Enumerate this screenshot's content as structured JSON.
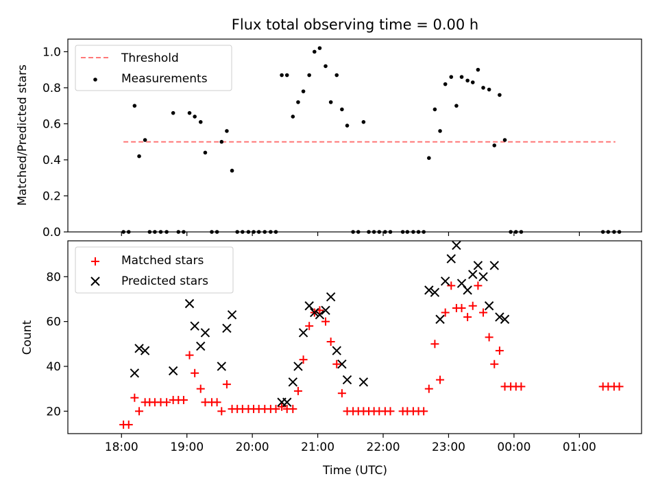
{
  "figure": {
    "title": "Flux total observing time = 0.00 h"
  },
  "chart_data": [
    {
      "type": "scatter",
      "panel": "top",
      "title": "Flux total observing time = 0.00 h",
      "xlabel": "",
      "ylabel": "Matched/Predicted stars",
      "x_ticks": [
        "18:00",
        "19:00",
        "20:00",
        "21:00",
        "22:00",
        "23:00",
        "00:00",
        "01:00"
      ],
      "x_tick_values": [
        18,
        19,
        20,
        21,
        22,
        23,
        24,
        25
      ],
      "x_tick_labels_shown": false,
      "xlim": [
        17.18,
        25.95
      ],
      "ylim": [
        0,
        1.07
      ],
      "y_ticks": [
        0.0,
        0.2,
        0.4,
        0.6,
        0.8,
        1.0
      ],
      "y_tick_labels": [
        "0.0",
        "0.2",
        "0.4",
        "0.6",
        "0.8",
        "1.0"
      ],
      "grid": false,
      "legend": {
        "placement": "top-left",
        "entries": [
          "Threshold",
          "Measurements"
        ]
      },
      "colors": {
        "threshold": "#ff7777",
        "measurements": "#000000"
      },
      "threshold": {
        "name": "Threshold",
        "value": 0.5,
        "x_range": [
          18.03,
          25.55
        ]
      },
      "series": [
        {
          "name": "Measurements",
          "marker": "dot",
          "points": [
            [
              18.03,
              0
            ],
            [
              18.11,
              0
            ],
            [
              18.2,
              0.7
            ],
            [
              18.27,
              0.42
            ],
            [
              18.36,
              0.51
            ],
            [
              18.43,
              0
            ],
            [
              18.51,
              0
            ],
            [
              18.6,
              0
            ],
            [
              18.69,
              0
            ],
            [
              18.79,
              0.66
            ],
            [
              18.87,
              0
            ],
            [
              18.95,
              0
            ],
            [
              19.04,
              0.66
            ],
            [
              19.12,
              0.64
            ],
            [
              19.21,
              0.61
            ],
            [
              19.28,
              0.44
            ],
            [
              19.38,
              0
            ],
            [
              19.46,
              0
            ],
            [
              19.53,
              0.5
            ],
            [
              19.61,
              0.56
            ],
            [
              19.69,
              0.34
            ],
            [
              19.77,
              0
            ],
            [
              19.85,
              0
            ],
            [
              19.94,
              0
            ],
            [
              20.02,
              0
            ],
            [
              20.1,
              0
            ],
            [
              20.19,
              0
            ],
            [
              20.28,
              0
            ],
            [
              20.36,
              0
            ],
            [
              20.45,
              0.87
            ],
            [
              20.53,
              0.87
            ],
            [
              20.62,
              0.64
            ],
            [
              20.7,
              0.72
            ],
            [
              20.78,
              0.78
            ],
            [
              20.87,
              0.87
            ],
            [
              20.95,
              1.0
            ],
            [
              21.03,
              1.02
            ],
            [
              21.12,
              0.92
            ],
            [
              21.2,
              0.72
            ],
            [
              21.29,
              0.87
            ],
            [
              21.37,
              0.68
            ],
            [
              21.45,
              0.59
            ],
            [
              21.54,
              0
            ],
            [
              21.62,
              0
            ],
            [
              21.7,
              0.61
            ],
            [
              21.78,
              0
            ],
            [
              21.86,
              0
            ],
            [
              21.94,
              0
            ],
            [
              22.03,
              0
            ],
            [
              22.11,
              0
            ],
            [
              22.3,
              0
            ],
            [
              22.37,
              0
            ],
            [
              22.46,
              0
            ],
            [
              22.54,
              0
            ],
            [
              22.62,
              0
            ],
            [
              22.7,
              0.41
            ],
            [
              22.79,
              0.68
            ],
            [
              22.87,
              0.56
            ],
            [
              22.95,
              0.82
            ],
            [
              23.04,
              0.86
            ],
            [
              23.12,
              0.7
            ],
            [
              23.2,
              0.86
            ],
            [
              23.29,
              0.84
            ],
            [
              23.37,
              0.83
            ],
            [
              23.45,
              0.9
            ],
            [
              23.53,
              0.8
            ],
            [
              23.62,
              0.79
            ],
            [
              23.7,
              0.48
            ],
            [
              23.78,
              0.76
            ],
            [
              23.86,
              0.51
            ],
            [
              23.95,
              0
            ],
            [
              24.03,
              0
            ],
            [
              24.11,
              0
            ],
            [
              25.36,
              0
            ],
            [
              25.44,
              0
            ],
            [
              25.53,
              0
            ],
            [
              25.61,
              0
            ]
          ]
        }
      ]
    },
    {
      "type": "scatter",
      "panel": "bottom",
      "xlabel": "Time (UTC)",
      "ylabel": "Count",
      "x_ticks": [
        "18:00",
        "19:00",
        "20:00",
        "21:00",
        "22:00",
        "23:00",
        "00:00",
        "01:00"
      ],
      "x_tick_values": [
        18,
        19,
        20,
        21,
        22,
        23,
        24,
        25
      ],
      "xlim": [
        17.18,
        25.95
      ],
      "ylim": [
        10,
        96
      ],
      "y_ticks": [
        20,
        40,
        60,
        80
      ],
      "y_tick_labels": [
        "20",
        "40",
        "60",
        "80"
      ],
      "grid": false,
      "legend": {
        "placement": "top-left",
        "entries": [
          "Matched stars",
          "Predicted stars"
        ]
      },
      "colors": {
        "matched": "#ff0000",
        "predicted": "#000000"
      },
      "series": [
        {
          "name": "Matched stars",
          "marker": "plus",
          "points": [
            [
              18.03,
              14
            ],
            [
              18.11,
              14
            ],
            [
              18.2,
              26
            ],
            [
              18.27,
              20
            ],
            [
              18.36,
              24
            ],
            [
              18.43,
              24
            ],
            [
              18.51,
              24
            ],
            [
              18.6,
              24
            ],
            [
              18.69,
              24
            ],
            [
              18.79,
              25
            ],
            [
              18.87,
              25
            ],
            [
              18.95,
              25
            ],
            [
              19.04,
              45
            ],
            [
              19.12,
              37
            ],
            [
              19.21,
              30
            ],
            [
              19.28,
              24
            ],
            [
              19.38,
              24
            ],
            [
              19.46,
              24
            ],
            [
              19.53,
              20
            ],
            [
              19.61,
              32
            ],
            [
              19.69,
              21
            ],
            [
              19.77,
              21
            ],
            [
              19.85,
              21
            ],
            [
              19.94,
              21
            ],
            [
              20.02,
              21
            ],
            [
              20.1,
              21
            ],
            [
              20.19,
              21
            ],
            [
              20.28,
              21
            ],
            [
              20.36,
              21
            ],
            [
              20.45,
              22
            ],
            [
              20.53,
              21
            ],
            [
              20.62,
              21
            ],
            [
              20.7,
              29
            ],
            [
              20.78,
              43
            ],
            [
              20.87,
              58
            ],
            [
              20.95,
              64
            ],
            [
              21.03,
              65
            ],
            [
              21.12,
              60
            ],
            [
              21.2,
              51
            ],
            [
              21.29,
              41
            ],
            [
              21.37,
              28
            ],
            [
              21.45,
              20
            ],
            [
              21.54,
              20
            ],
            [
              21.62,
              20
            ],
            [
              21.7,
              20
            ],
            [
              21.78,
              20
            ],
            [
              21.86,
              20
            ],
            [
              21.94,
              20
            ],
            [
              22.03,
              20
            ],
            [
              22.11,
              20
            ],
            [
              22.3,
              20
            ],
            [
              22.37,
              20
            ],
            [
              22.46,
              20
            ],
            [
              22.54,
              20
            ],
            [
              22.62,
              20
            ],
            [
              22.7,
              30
            ],
            [
              22.79,
              50
            ],
            [
              22.87,
              34
            ],
            [
              22.95,
              64
            ],
            [
              23.04,
              76
            ],
            [
              23.12,
              66
            ],
            [
              23.2,
              66
            ],
            [
              23.29,
              62
            ],
            [
              23.37,
              67
            ],
            [
              23.45,
              76
            ],
            [
              23.53,
              64
            ],
            [
              23.62,
              53
            ],
            [
              23.7,
              41
            ],
            [
              23.78,
              47
            ],
            [
              23.86,
              31
            ],
            [
              23.95,
              31
            ],
            [
              24.03,
              31
            ],
            [
              24.11,
              31
            ],
            [
              25.36,
              31
            ],
            [
              25.44,
              31
            ],
            [
              25.53,
              31
            ],
            [
              25.61,
              31
            ]
          ]
        },
        {
          "name": "Predicted stars",
          "marker": "x",
          "points": [
            [
              18.2,
              37
            ],
            [
              18.27,
              48
            ],
            [
              18.36,
              47
            ],
            [
              18.79,
              38
            ],
            [
              19.04,
              68
            ],
            [
              19.12,
              58
            ],
            [
              19.21,
              49
            ],
            [
              19.28,
              55
            ],
            [
              19.53,
              40
            ],
            [
              19.61,
              57
            ],
            [
              19.69,
              63
            ],
            [
              20.45,
              24
            ],
            [
              20.53,
              24
            ],
            [
              20.62,
              33
            ],
            [
              20.7,
              40
            ],
            [
              20.78,
              55
            ],
            [
              20.87,
              67
            ],
            [
              20.95,
              64
            ],
            [
              21.03,
              63
            ],
            [
              21.12,
              65
            ],
            [
              21.2,
              71
            ],
            [
              21.29,
              47
            ],
            [
              21.37,
              41
            ],
            [
              21.45,
              34
            ],
            [
              21.7,
              33
            ],
            [
              22.7,
              74
            ],
            [
              22.79,
              73
            ],
            [
              22.87,
              61
            ],
            [
              22.95,
              78
            ],
            [
              23.04,
              88
            ],
            [
              23.12,
              94
            ],
            [
              23.2,
              77
            ],
            [
              23.29,
              74
            ],
            [
              23.37,
              81
            ],
            [
              23.45,
              85
            ],
            [
              23.53,
              80
            ],
            [
              23.62,
              67
            ],
            [
              23.7,
              85
            ],
            [
              23.78,
              62
            ],
            [
              23.86,
              61
            ]
          ]
        }
      ]
    }
  ]
}
